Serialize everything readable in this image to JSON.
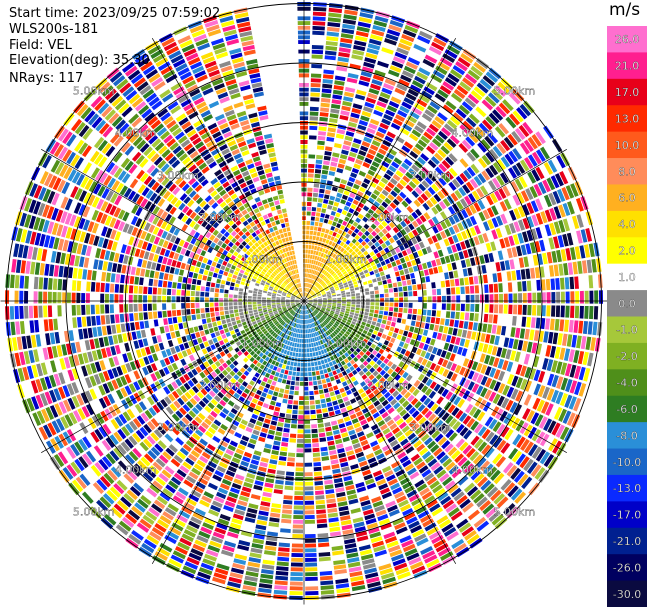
{
  "header": {
    "start_time": "Start time: 2023/09/25 07:59:02",
    "instrument": "WLS200s-181",
    "field": "Field: VEL",
    "elevation": "Elevation(deg): 35.30",
    "nrays": "NRays: 117"
  },
  "colorbar": {
    "unit": "m/s",
    "labels": [
      "26.0",
      "21.0",
      "17.0",
      "13.0",
      "10.0",
      "8.0",
      "6.0",
      "4.0",
      "2.0",
      "1.0",
      "0.0",
      "-1.0",
      "-2.0",
      "-4.0",
      "-6.0",
      "-8.0",
      "-10.0",
      "-13.0",
      "-17.0",
      "-21.0",
      "-26.0",
      "-30.0"
    ],
    "colors": [
      "#ff6fcf",
      "#ff1f8f",
      "#e8001a",
      "#ff2a00",
      "#ff5a1c",
      "#ff8c5a",
      "#ffb020",
      "#ffe000",
      "#ffff00",
      "#ffffff",
      "#8a8a8a",
      "#a6c83a",
      "#7fb022",
      "#4f8f1a",
      "#2e7d22",
      "#2a8fd8",
      "#1a66c8",
      "#0a2aff",
      "#0000c8",
      "#002090",
      "#000060",
      "#0a0a40"
    ]
  },
  "chart_data": {
    "type": "ppi",
    "title": "",
    "field": "VEL",
    "units": "m/s",
    "elevation_deg": 35.3,
    "nrays": 117,
    "color_scale": [
      -30.0,
      -26.0,
      -21.0,
      -17.0,
      -13.0,
      -10.0,
      -8.0,
      -6.0,
      -4.0,
      -2.0,
      -1.0,
      0.0,
      1.0,
      2.0,
      4.0,
      6.0,
      8.0,
      10.0,
      13.0,
      17.0,
      21.0,
      26.0
    ],
    "range_rings_km": [
      1.0,
      2.0,
      3.0,
      4.0,
      5.0
    ],
    "range_ring_labels": [
      "1.00km",
      "2.00km",
      "3.00km",
      "4.00km",
      "5.00km"
    ],
    "missing_sector_deg": [
      -12,
      0
    ],
    "coherent_range_km": 1.1,
    "velocity_by_azimuth": [
      {
        "az": 0,
        "vel": 6.0
      },
      {
        "az": 90,
        "vel": 0.0
      },
      {
        "az": 180,
        "vel": -8.0
      },
      {
        "az": 270,
        "vel": 0.0
      }
    ]
  }
}
